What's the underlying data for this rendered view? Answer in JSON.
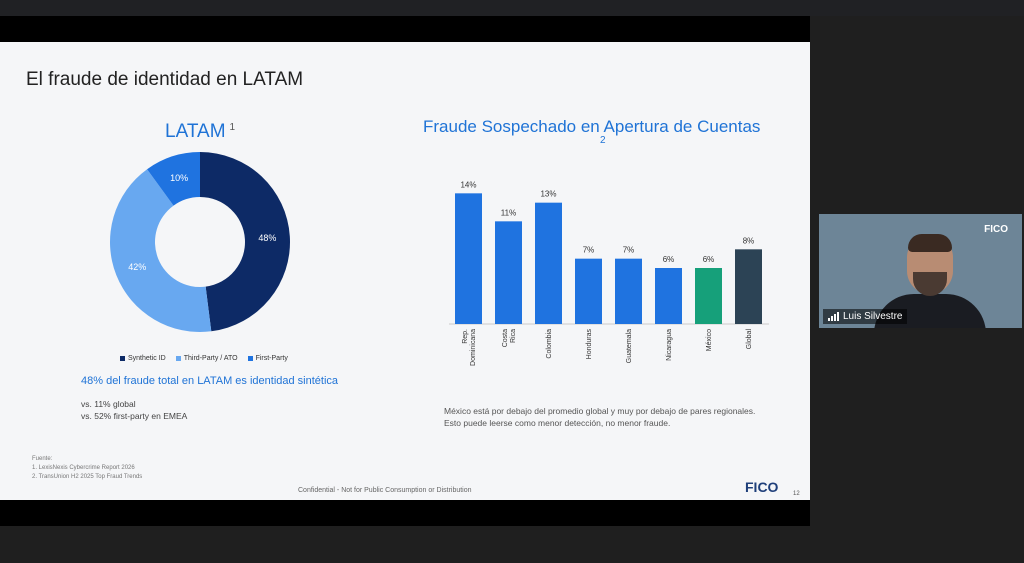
{
  "slide": {
    "title": "El fraude de identidad en LATAM",
    "latam_title": "LATAM",
    "latam_sup": "1",
    "bar_title": "Fraude Sospechado en Apertura de Cuentas",
    "bar_sup": "2",
    "headline": "48% del fraude total en LATAM es identidad sintética",
    "vs_global": "vs. 11% global",
    "vs_emea": "vs. 52% first-party en EMEA",
    "note": "México está por debajo del promedio global y muy por debajo de pares regionales. Esto puede leerse como menor detección, no menor fraude.",
    "fuente_label": "Fuente:",
    "fuente_1": "1.      LexisNexis Cybercrime Report 2026",
    "fuente_2": "2.      TransUnion H2 2025 Top Fraud Trends",
    "confidential": "Confidential - Not for Public Consumption or Distribution",
    "logo": "FICO",
    "page": "12"
  },
  "legend": [
    {
      "label": "Synthetic ID",
      "color": "#0d2a66"
    },
    {
      "label": "Third-Party / ATO",
      "color": "#68a8f0"
    },
    {
      "label": "First-Party",
      "color": "#1f73e0"
    }
  ],
  "camera": {
    "name": "Luis Silvestre",
    "logo": "FICO",
    "icon": "signal-bars-icon"
  },
  "chart_data": [
    {
      "type": "pie",
      "title": "LATAM",
      "donut": true,
      "slices": [
        {
          "label": "Synthetic ID",
          "value": 48,
          "data_label": "48%",
          "color": "#0d2a66"
        },
        {
          "label": "Third-Party / ATO",
          "value": 42,
          "data_label": "42%",
          "color": "#68a8f0"
        },
        {
          "label": "First-Party",
          "value": 10,
          "data_label": "10%",
          "color": "#1f73e0"
        }
      ],
      "legend_position": "bottom"
    },
    {
      "type": "bar",
      "title": "Fraude Sospechado en Apertura de Cuentas",
      "categories": [
        "Rep. Dominicana",
        "Costa Rica",
        "Colombia",
        "Honduras",
        "Guatemala",
        "Nicaragua",
        "México",
        "Global"
      ],
      "values": [
        14,
        11,
        13,
        7,
        7,
        6,
        6,
        8
      ],
      "data_labels": [
        "14%",
        "11%",
        "13%",
        "7%",
        "7%",
        "6%",
        "6%",
        "8%"
      ],
      "colors": [
        "#1f73e0",
        "#1f73e0",
        "#1f73e0",
        "#1f73e0",
        "#1f73e0",
        "#1f73e0",
        "#16a07a",
        "#2c4355"
      ],
      "ylim": [
        0,
        15
      ],
      "grid": false
    }
  ]
}
